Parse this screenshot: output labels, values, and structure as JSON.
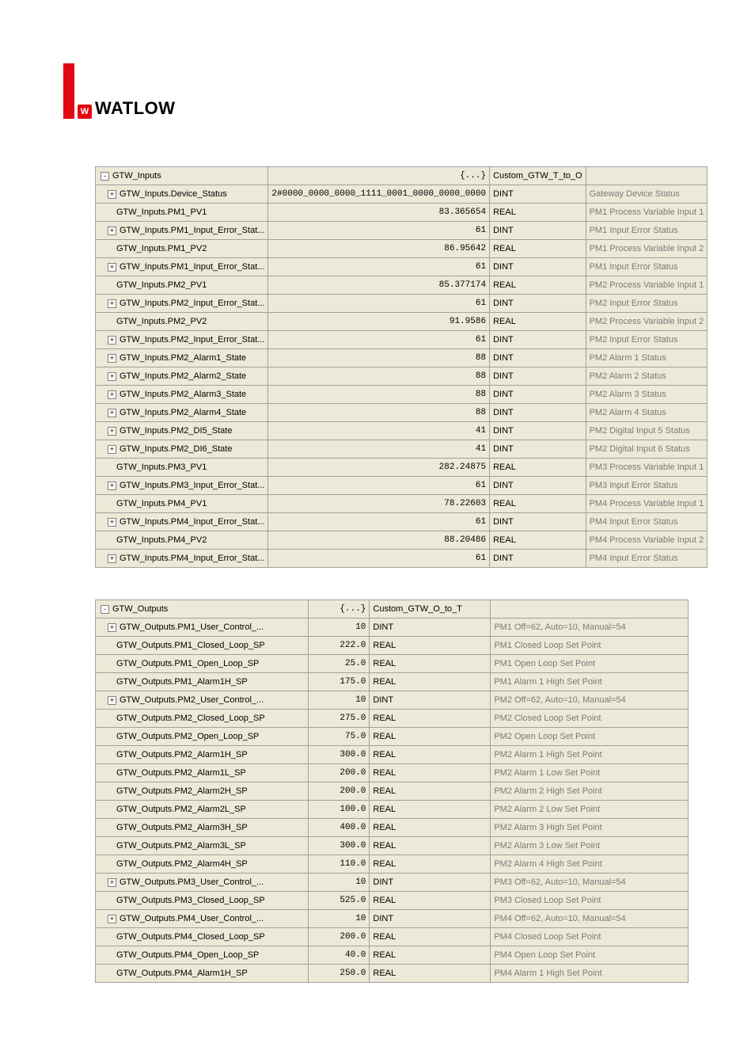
{
  "logo": {
    "brand": "WATLOW",
    "icon_letter": "W"
  },
  "inputs": {
    "root_name": "GTW_Inputs",
    "root_value": "{...}",
    "root_type": "Custom_GTW_T_to_O",
    "rows": [
      {
        "expand": "+",
        "name": "GTW_Inputs.Device_Status",
        "value": "2#0000_0000_0000_1111_0001_0000_0000_0000",
        "type": "DINT",
        "desc": "Gateway Device Status"
      },
      {
        "expand": "",
        "name": "GTW_Inputs.PM1_PV1",
        "value": "83.365654",
        "type": "REAL",
        "desc": "PM1 Process Variable Input 1"
      },
      {
        "expand": "+",
        "name": "GTW_Inputs.PM1_Input_Error_Stat...",
        "value": "61",
        "type": "DINT",
        "desc": "PM1 Input Error Status"
      },
      {
        "expand": "",
        "name": "GTW_Inputs.PM1_PV2",
        "value": "86.95642",
        "type": "REAL",
        "desc": "PM1 Process Variable Input 2"
      },
      {
        "expand": "+",
        "name": "GTW_Inputs.PM1_Input_Error_Stat...",
        "value": "61",
        "type": "DINT",
        "desc": "PM1 Input Error Status"
      },
      {
        "expand": "",
        "name": "GTW_Inputs.PM2_PV1",
        "value": "85.377174",
        "type": "REAL",
        "desc": "PM2 Process Variable Input 1"
      },
      {
        "expand": "+",
        "name": "GTW_Inputs.PM2_Input_Error_Stat...",
        "value": "61",
        "type": "DINT",
        "desc": "PM2 Input Error Status"
      },
      {
        "expand": "",
        "name": "GTW_Inputs.PM2_PV2",
        "value": "91.9586",
        "type": "REAL",
        "desc": "PM2 Process Variable Input 2"
      },
      {
        "expand": "+",
        "name": "GTW_Inputs.PM2_Input_Error_Stat...",
        "value": "61",
        "type": "DINT",
        "desc": "PM2 Input Error Status"
      },
      {
        "expand": "+",
        "name": "GTW_Inputs.PM2_Alarm1_State",
        "value": "88",
        "type": "DINT",
        "desc": "PM2 Alarm 1 Status"
      },
      {
        "expand": "+",
        "name": "GTW_Inputs.PM2_Alarm2_State",
        "value": "88",
        "type": "DINT",
        "desc": "PM2 Alarm 2 Status"
      },
      {
        "expand": "+",
        "name": "GTW_Inputs.PM2_Alarm3_State",
        "value": "88",
        "type": "DINT",
        "desc": "PM2 Alarm 3 Status"
      },
      {
        "expand": "+",
        "name": "GTW_Inputs.PM2_Alarm4_State",
        "value": "88",
        "type": "DINT",
        "desc": "PM2 Alarm 4 Status"
      },
      {
        "expand": "+",
        "name": "GTW_Inputs.PM2_DI5_State",
        "value": "41",
        "type": "DINT",
        "desc": "PM2 Digital Input 5 Status"
      },
      {
        "expand": "+",
        "name": "GTW_Inputs.PM2_DI6_State",
        "value": "41",
        "type": "DINT",
        "desc": "PM2 Digital Input 6 Status"
      },
      {
        "expand": "",
        "name": "GTW_Inputs.PM3_PV1",
        "value": "282.24875",
        "type": "REAL",
        "desc": "PM3 Process Variable Input 1"
      },
      {
        "expand": "+",
        "name": "GTW_Inputs.PM3_Input_Error_Stat...",
        "value": "61",
        "type": "DINT",
        "desc": "PM3 Input Error Status"
      },
      {
        "expand": "",
        "name": "GTW_Inputs.PM4_PV1",
        "value": "78.22603",
        "type": "REAL",
        "desc": "PM4 Process Variable Input 1"
      },
      {
        "expand": "+",
        "name": "GTW_Inputs.PM4_Input_Error_Stat...",
        "value": "61",
        "type": "DINT",
        "desc": "PM4 Input Error Status"
      },
      {
        "expand": "",
        "name": "GTW_Inputs.PM4_PV2",
        "value": "88.20486",
        "type": "REAL",
        "desc": "PM4 Process Variable Input 2"
      },
      {
        "expand": "+",
        "name": "GTW_Inputs.PM4_Input_Error_Stat...",
        "value": "61",
        "type": "DINT",
        "desc": "PM4 Input Error Status"
      }
    ]
  },
  "outputs": {
    "root_name": "GTW_Outputs",
    "root_value": "{...}",
    "root_type": "Custom_GTW_O_to_T",
    "rows": [
      {
        "expand": "+",
        "name": "GTW_Outputs.PM1_User_Control_...",
        "value": "10",
        "type": "DINT",
        "desc": "PM1 Off=62, Auto=10, Manual=54"
      },
      {
        "expand": "",
        "name": "GTW_Outputs.PM1_Closed_Loop_SP",
        "value": "222.0",
        "type": "REAL",
        "desc": "PM1 Closed Loop Set Point"
      },
      {
        "expand": "",
        "name": "GTW_Outputs.PM1_Open_Loop_SP",
        "value": "25.0",
        "type": "REAL",
        "desc": "PM1 Open Loop Set Point"
      },
      {
        "expand": "",
        "name": "GTW_Outputs.PM1_Alarm1H_SP",
        "value": "175.0",
        "type": "REAL",
        "desc": "PM1 Alarm 1 High Set Point"
      },
      {
        "expand": "+",
        "name": "GTW_Outputs.PM2_User_Control_...",
        "value": "10",
        "type": "DINT",
        "desc": "PM2 Off=62, Auto=10, Manual=54"
      },
      {
        "expand": "",
        "name": "GTW_Outputs.PM2_Closed_Loop_SP",
        "value": "275.0",
        "type": "REAL",
        "desc": "PM2 Closed Loop Set Point"
      },
      {
        "expand": "",
        "name": "GTW_Outputs.PM2_Open_Loop_SP",
        "value": "75.0",
        "type": "REAL",
        "desc": "PM2 Open Loop Set Point"
      },
      {
        "expand": "",
        "name": "GTW_Outputs.PM2_Alarm1H_SP",
        "value": "300.0",
        "type": "REAL",
        "desc": "PM2 Alarm 1 High Set Point"
      },
      {
        "expand": "",
        "name": "GTW_Outputs.PM2_Alarm1L_SP",
        "value": "200.0",
        "type": "REAL",
        "desc": "PM2 Alarm 1 Low Set Point"
      },
      {
        "expand": "",
        "name": "GTW_Outputs.PM2_Alarm2H_SP",
        "value": "200.0",
        "type": "REAL",
        "desc": "PM2 Alarm 2 High Set Point"
      },
      {
        "expand": "",
        "name": "GTW_Outputs.PM2_Alarm2L_SP",
        "value": "100.0",
        "type": "REAL",
        "desc": "PM2 Alarm 2 Low Set Point"
      },
      {
        "expand": "",
        "name": "GTW_Outputs.PM2_Alarm3H_SP",
        "value": "400.0",
        "type": "REAL",
        "desc": "PM2 Alarm 3 High Set Point"
      },
      {
        "expand": "",
        "name": "GTW_Outputs.PM2_Alarm3L_SP",
        "value": "300.0",
        "type": "REAL",
        "desc": "PM2 Alarm 3 Low Set Point"
      },
      {
        "expand": "",
        "name": "GTW_Outputs.PM2_Alarm4H_SP",
        "value": "110.0",
        "type": "REAL",
        "desc": "PM2 Alarm 4 High Set Point"
      },
      {
        "expand": "+",
        "name": "GTW_Outputs.PM3_User_Control_...",
        "value": "10",
        "type": "DINT",
        "desc": "PM3 Off=62, Auto=10, Manual=54"
      },
      {
        "expand": "",
        "name": "GTW_Outputs.PM3_Closed_Loop_SP",
        "value": "525.0",
        "type": "REAL",
        "desc": "PM3 Closed Loop Set Point"
      },
      {
        "expand": "+",
        "name": "GTW_Outputs.PM4_User_Control_...",
        "value": "10",
        "type": "DINT",
        "desc": "PM4 Off=62, Auto=10, Manual=54"
      },
      {
        "expand": "",
        "name": "GTW_Outputs.PM4_Closed_Loop_SP",
        "value": "200.0",
        "type": "REAL",
        "desc": "PM4 Closed Loop Set Point"
      },
      {
        "expand": "",
        "name": "GTW_Outputs.PM4_Open_Loop_SP",
        "value": "40.0",
        "type": "REAL",
        "desc": "PM4 Open Loop Set Point"
      },
      {
        "expand": "",
        "name": "GTW_Outputs.PM4_Alarm1H_SP",
        "value": "250.0",
        "type": "REAL",
        "desc": "PM4 Alarm 1 High Set Point"
      }
    ]
  }
}
